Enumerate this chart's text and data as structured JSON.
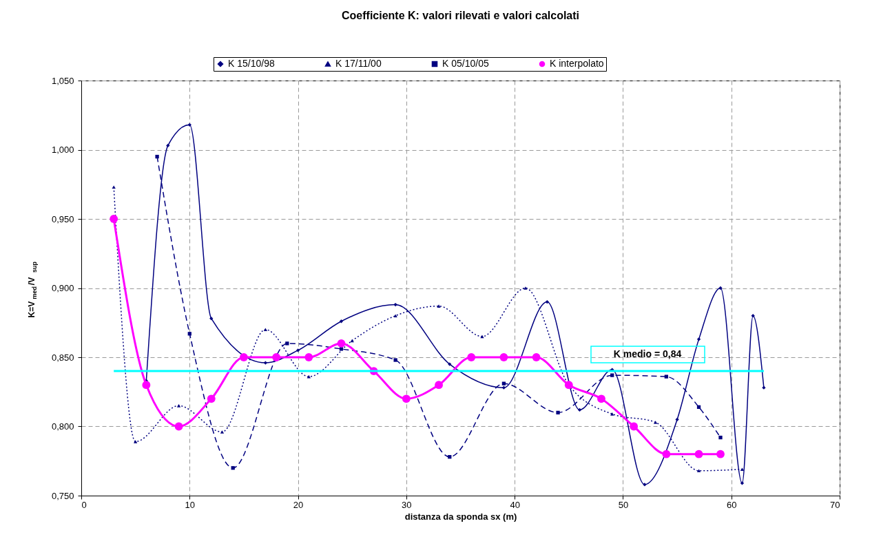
{
  "chart_data": {
    "type": "line",
    "title": "Coefficiente K: valori rilevati e valori calcolati",
    "xlabel": "distanza da sponda sx (m)",
    "ylabel": "K=V$_{med}$/V$_{sup}$",
    "xlim": [
      0,
      70
    ],
    "xticks": [
      0,
      10,
      20,
      30,
      40,
      50,
      60,
      70
    ],
    "ylim": [
      0.75,
      1.05
    ],
    "yticks": [
      {
        "value": 0.75,
        "label": "0,750"
      },
      {
        "value": 0.8,
        "label": "0,800"
      },
      {
        "value": 0.85,
        "label": "0,850"
      },
      {
        "value": 0.9,
        "label": "0,900"
      },
      {
        "value": 0.95,
        "label": "0,950"
      },
      {
        "value": 1.0,
        "label": "1,000"
      },
      {
        "value": 1.05,
        "label": "1,050"
      }
    ],
    "grid": true,
    "legend": "top",
    "series": [
      {
        "name": "K 15/10/98",
        "color": "#000080",
        "marker": "diamond",
        "line_style": "solid",
        "x": [
          6,
          8,
          10,
          12,
          17,
          20,
          24,
          29,
          34,
          39,
          43,
          46,
          49,
          52,
          55,
          57,
          59,
          61,
          62,
          63
        ],
        "values": [
          0.833,
          1.003,
          1.018,
          0.878,
          0.846,
          0.855,
          0.876,
          0.888,
          0.845,
          0.828,
          0.89,
          0.812,
          0.841,
          0.758,
          0.805,
          0.863,
          0.9,
          0.759,
          0.88,
          0.828
        ]
      },
      {
        "name": "K 17/11/00",
        "color": "#000080",
        "marker": "triangle",
        "line_style": "dotted",
        "x": [
          3,
          5,
          9,
          13,
          17,
          21,
          25,
          29,
          33,
          37,
          41,
          45,
          49,
          53,
          57,
          61
        ],
        "values": [
          0.973,
          0.789,
          0.815,
          0.796,
          0.87,
          0.836,
          0.862,
          0.88,
          0.887,
          0.865,
          0.9,
          0.83,
          0.809,
          0.803,
          0.768,
          0.769
        ]
      },
      {
        "name": "K 05/10/05",
        "color": "#000080",
        "marker": "square",
        "line_style": "dashed",
        "x": [
          7,
          10,
          14,
          19,
          24,
          29,
          34,
          39,
          44,
          49,
          54,
          57,
          59
        ],
        "values": [
          0.995,
          0.867,
          0.77,
          0.86,
          0.856,
          0.848,
          0.778,
          0.831,
          0.81,
          0.837,
          0.836,
          0.814,
          0.792
        ]
      },
      {
        "name": "K interpolato",
        "color": "#ff00ff",
        "marker": "circle",
        "line_style": "solid",
        "x": [
          3,
          6,
          9,
          12,
          15,
          18,
          21,
          24,
          27,
          30,
          33,
          36,
          39,
          42,
          45,
          48,
          51,
          54,
          57,
          59
        ],
        "values": [
          0.95,
          0.83,
          0.8,
          0.82,
          0.85,
          0.85,
          0.85,
          0.86,
          0.84,
          0.82,
          0.83,
          0.85,
          0.85,
          0.85,
          0.83,
          0.82,
          0.8,
          0.78,
          0.78,
          0.78
        ]
      }
    ],
    "ref_lines": [
      {
        "axis": "y",
        "value": 0.84,
        "label": "K medio = 0,84",
        "color": "#00ffff"
      }
    ]
  }
}
